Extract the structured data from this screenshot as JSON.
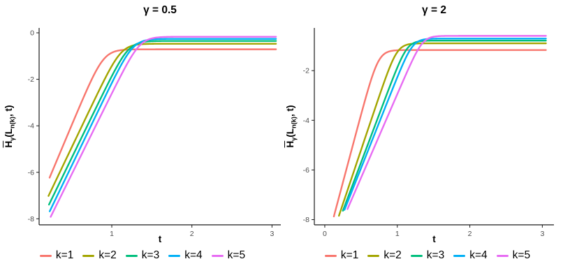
{
  "figure": {
    "background": "#FFFFFF",
    "axis_color": "#1A1A1A",
    "tick_label_color": "#4D4D4D"
  },
  "chart_data": [
    {
      "type": "line",
      "title": "γ = 0.5",
      "xlabel": "t",
      "ylabel": "H̄γ(Ln(k), t)",
      "ylabel_parts": [
        {
          "text": "H",
          "over": true
        },
        {
          "text": "γ",
          "sub": true
        },
        {
          "text": "(L"
        },
        {
          "text": "n(k)",
          "sub": true
        },
        {
          "text": ", t)"
        }
      ],
      "xlim": [
        0.093,
        3.11
      ],
      "ylim": [
        -8.26,
        0.21
      ],
      "x_ticks": [
        1,
        2,
        3
      ],
      "y_ticks": [
        0,
        -2,
        -4,
        -6,
        -8
      ],
      "grid": false,
      "legend_position": "bottom",
      "series": [
        {
          "name": "k=1",
          "color": "#F8766D",
          "model": {
            "plateau": -0.71,
            "slope": 8.2,
            "t_flat": 0.897,
            "bend": 13,
            "t_start": 0.224,
            "t_end": 3.05
          },
          "points": [
            [
              0.224,
              -6.23
            ],
            [
              0.5,
              -3.97
            ],
            [
              0.75,
              -2.0
            ],
            [
              1.0,
              -0.86
            ],
            [
              1.5,
              -0.71
            ],
            [
              2.0,
              -0.71
            ],
            [
              3.0,
              -0.71
            ]
          ]
        },
        {
          "name": "k=2",
          "color": "#A3A500",
          "model": {
            "plateau": -0.47,
            "slope": 7.21,
            "t_flat": 1.118,
            "bend": 13,
            "t_start": 0.21,
            "t_end": 3.05
          },
          "points": [
            [
              0.21,
              -7.02
            ],
            [
              0.5,
              -4.93
            ],
            [
              0.75,
              -3.13
            ],
            [
              1.0,
              -1.43
            ],
            [
              1.5,
              -0.47
            ],
            [
              2.0,
              -0.47
            ],
            [
              3.0,
              -0.47
            ]
          ]
        },
        {
          "name": "k=3",
          "color": "#00BF7D",
          "model": {
            "plateau": -0.35,
            "slope": 7.09,
            "t_flat": 1.209,
            "bend": 13,
            "t_start": 0.216,
            "t_end": 3.05
          },
          "points": [
            [
              0.216,
              -7.39
            ],
            [
              0.5,
              -5.38
            ],
            [
              0.75,
              -3.6
            ],
            [
              1.0,
              -1.87
            ],
            [
              1.5,
              -0.36
            ],
            [
              2.0,
              -0.35
            ],
            [
              3.0,
              -0.35
            ]
          ]
        },
        {
          "name": "k=4",
          "color": "#00B0F6",
          "model": {
            "plateau": -0.26,
            "slope": 7.14,
            "t_flat": 1.264,
            "bend": 13,
            "t_start": 0.225,
            "t_end": 3.05
          },
          "points": [
            [
              0.225,
              -7.68
            ],
            [
              0.5,
              -5.72
            ],
            [
              0.75,
              -3.93
            ],
            [
              1.0,
              -2.16
            ],
            [
              1.5,
              -0.29
            ],
            [
              2.0,
              -0.26
            ],
            [
              3.0,
              -0.26
            ]
          ]
        },
        {
          "name": "k=5",
          "color": "#E76BF3",
          "model": {
            "plateau": -0.17,
            "slope": 6.96,
            "t_flat": 1.35,
            "bend": 13,
            "t_start": 0.237,
            "t_end": 3.05
          },
          "points": [
            [
              0.237,
              -7.92
            ],
            [
              0.5,
              -6.09
            ],
            [
              0.75,
              -4.35
            ],
            [
              1.0,
              -2.61
            ],
            [
              1.5,
              -0.24
            ],
            [
              2.0,
              -0.17
            ],
            [
              3.0,
              -0.17
            ]
          ]
        }
      ]
    },
    {
      "type": "line",
      "title": "γ = 2",
      "xlabel": "t",
      "ylabel": "H̄γ(Ln(k), t)",
      "ylabel_parts": [
        {
          "text": "H",
          "over": true
        },
        {
          "text": "γ",
          "sub": true
        },
        {
          "text": "(L"
        },
        {
          "text": "n(k)",
          "sub": true
        },
        {
          "text": ", t)"
        }
      ],
      "xlim": [
        -0.144,
        3.16
      ],
      "ylim": [
        -8.21,
        -0.28
      ],
      "x_ticks": [
        0,
        1,
        2,
        3
      ],
      "y_ticks": [
        -2,
        -4,
        -6,
        -8
      ],
      "grid": false,
      "legend_position": "bottom",
      "series": [
        {
          "name": "k=1",
          "color": "#F8766D",
          "model": {
            "plateau": -1.17,
            "slope": 10.97,
            "t_flat": 0.736,
            "bend": 16,
            "t_start": 0.125,
            "t_end": 3.05
          },
          "points": [
            [
              0.125,
              -7.87
            ],
            [
              0.3,
              -5.95
            ],
            [
              0.5,
              -3.76
            ],
            [
              0.75,
              -1.57
            ],
            [
              1.0,
              -1.18
            ],
            [
              1.5,
              -1.17
            ],
            [
              2.0,
              -1.17
            ],
            [
              3.0,
              -1.17
            ]
          ]
        },
        {
          "name": "k=2",
          "color": "#A3A500",
          "model": {
            "plateau": -0.9,
            "slope": 8.68,
            "t_flat": 0.995,
            "bend": 16,
            "t_start": 0.195,
            "t_end": 3.05
          },
          "points": [
            [
              0.195,
              -7.84
            ],
            [
              0.5,
              -5.2
            ],
            [
              0.75,
              -3.04
            ],
            [
              1.0,
              -1.25
            ],
            [
              1.25,
              -0.91
            ],
            [
              1.5,
              -0.9
            ],
            [
              2.0,
              -0.9
            ],
            [
              3.0,
              -0.9
            ]
          ]
        },
        {
          "name": "k=3",
          "color": "#00BF7D",
          "model": {
            "plateau": -0.79,
            "slope": 7.76,
            "t_flat": 1.133,
            "bend": 16,
            "t_start": 0.25,
            "t_end": 3.05
          },
          "points": [
            [
              0.25,
              -7.64
            ],
            [
              0.5,
              -5.7
            ],
            [
              0.75,
              -3.76
            ],
            [
              1.0,
              -1.88
            ],
            [
              1.25,
              -0.86
            ],
            [
              1.5,
              -0.79
            ],
            [
              2.0,
              -0.79
            ],
            [
              3.0,
              -0.79
            ]
          ]
        },
        {
          "name": "k=4",
          "color": "#00B0F6",
          "model": {
            "plateau": -0.71,
            "slope": 7.35,
            "t_flat": 1.21,
            "bend": 16,
            "t_start": 0.272,
            "t_end": 3.05
          },
          "points": [
            [
              0.272,
              -7.61
            ],
            [
              0.5,
              -5.93
            ],
            [
              0.75,
              -4.09
            ],
            [
              1.0,
              -2.27
            ],
            [
              1.25,
              -0.9
            ],
            [
              1.5,
              -0.71
            ],
            [
              2.0,
              -0.71
            ],
            [
              3.0,
              -0.71
            ]
          ]
        },
        {
          "name": "k=5",
          "color": "#E76BF3",
          "model": {
            "plateau": -0.6,
            "slope": 6.74,
            "t_flat": 1.348,
            "bend": 16,
            "t_start": 0.313,
            "t_end": 3.05
          },
          "points": [
            [
              0.313,
              -7.58
            ],
            [
              0.5,
              -6.32
            ],
            [
              0.75,
              -4.63
            ],
            [
              1.0,
              -2.95
            ],
            [
              1.25,
              -1.34
            ],
            [
              1.5,
              -0.64
            ],
            [
              2.0,
              -0.6
            ],
            [
              3.0,
              -0.6
            ]
          ]
        }
      ]
    }
  ]
}
